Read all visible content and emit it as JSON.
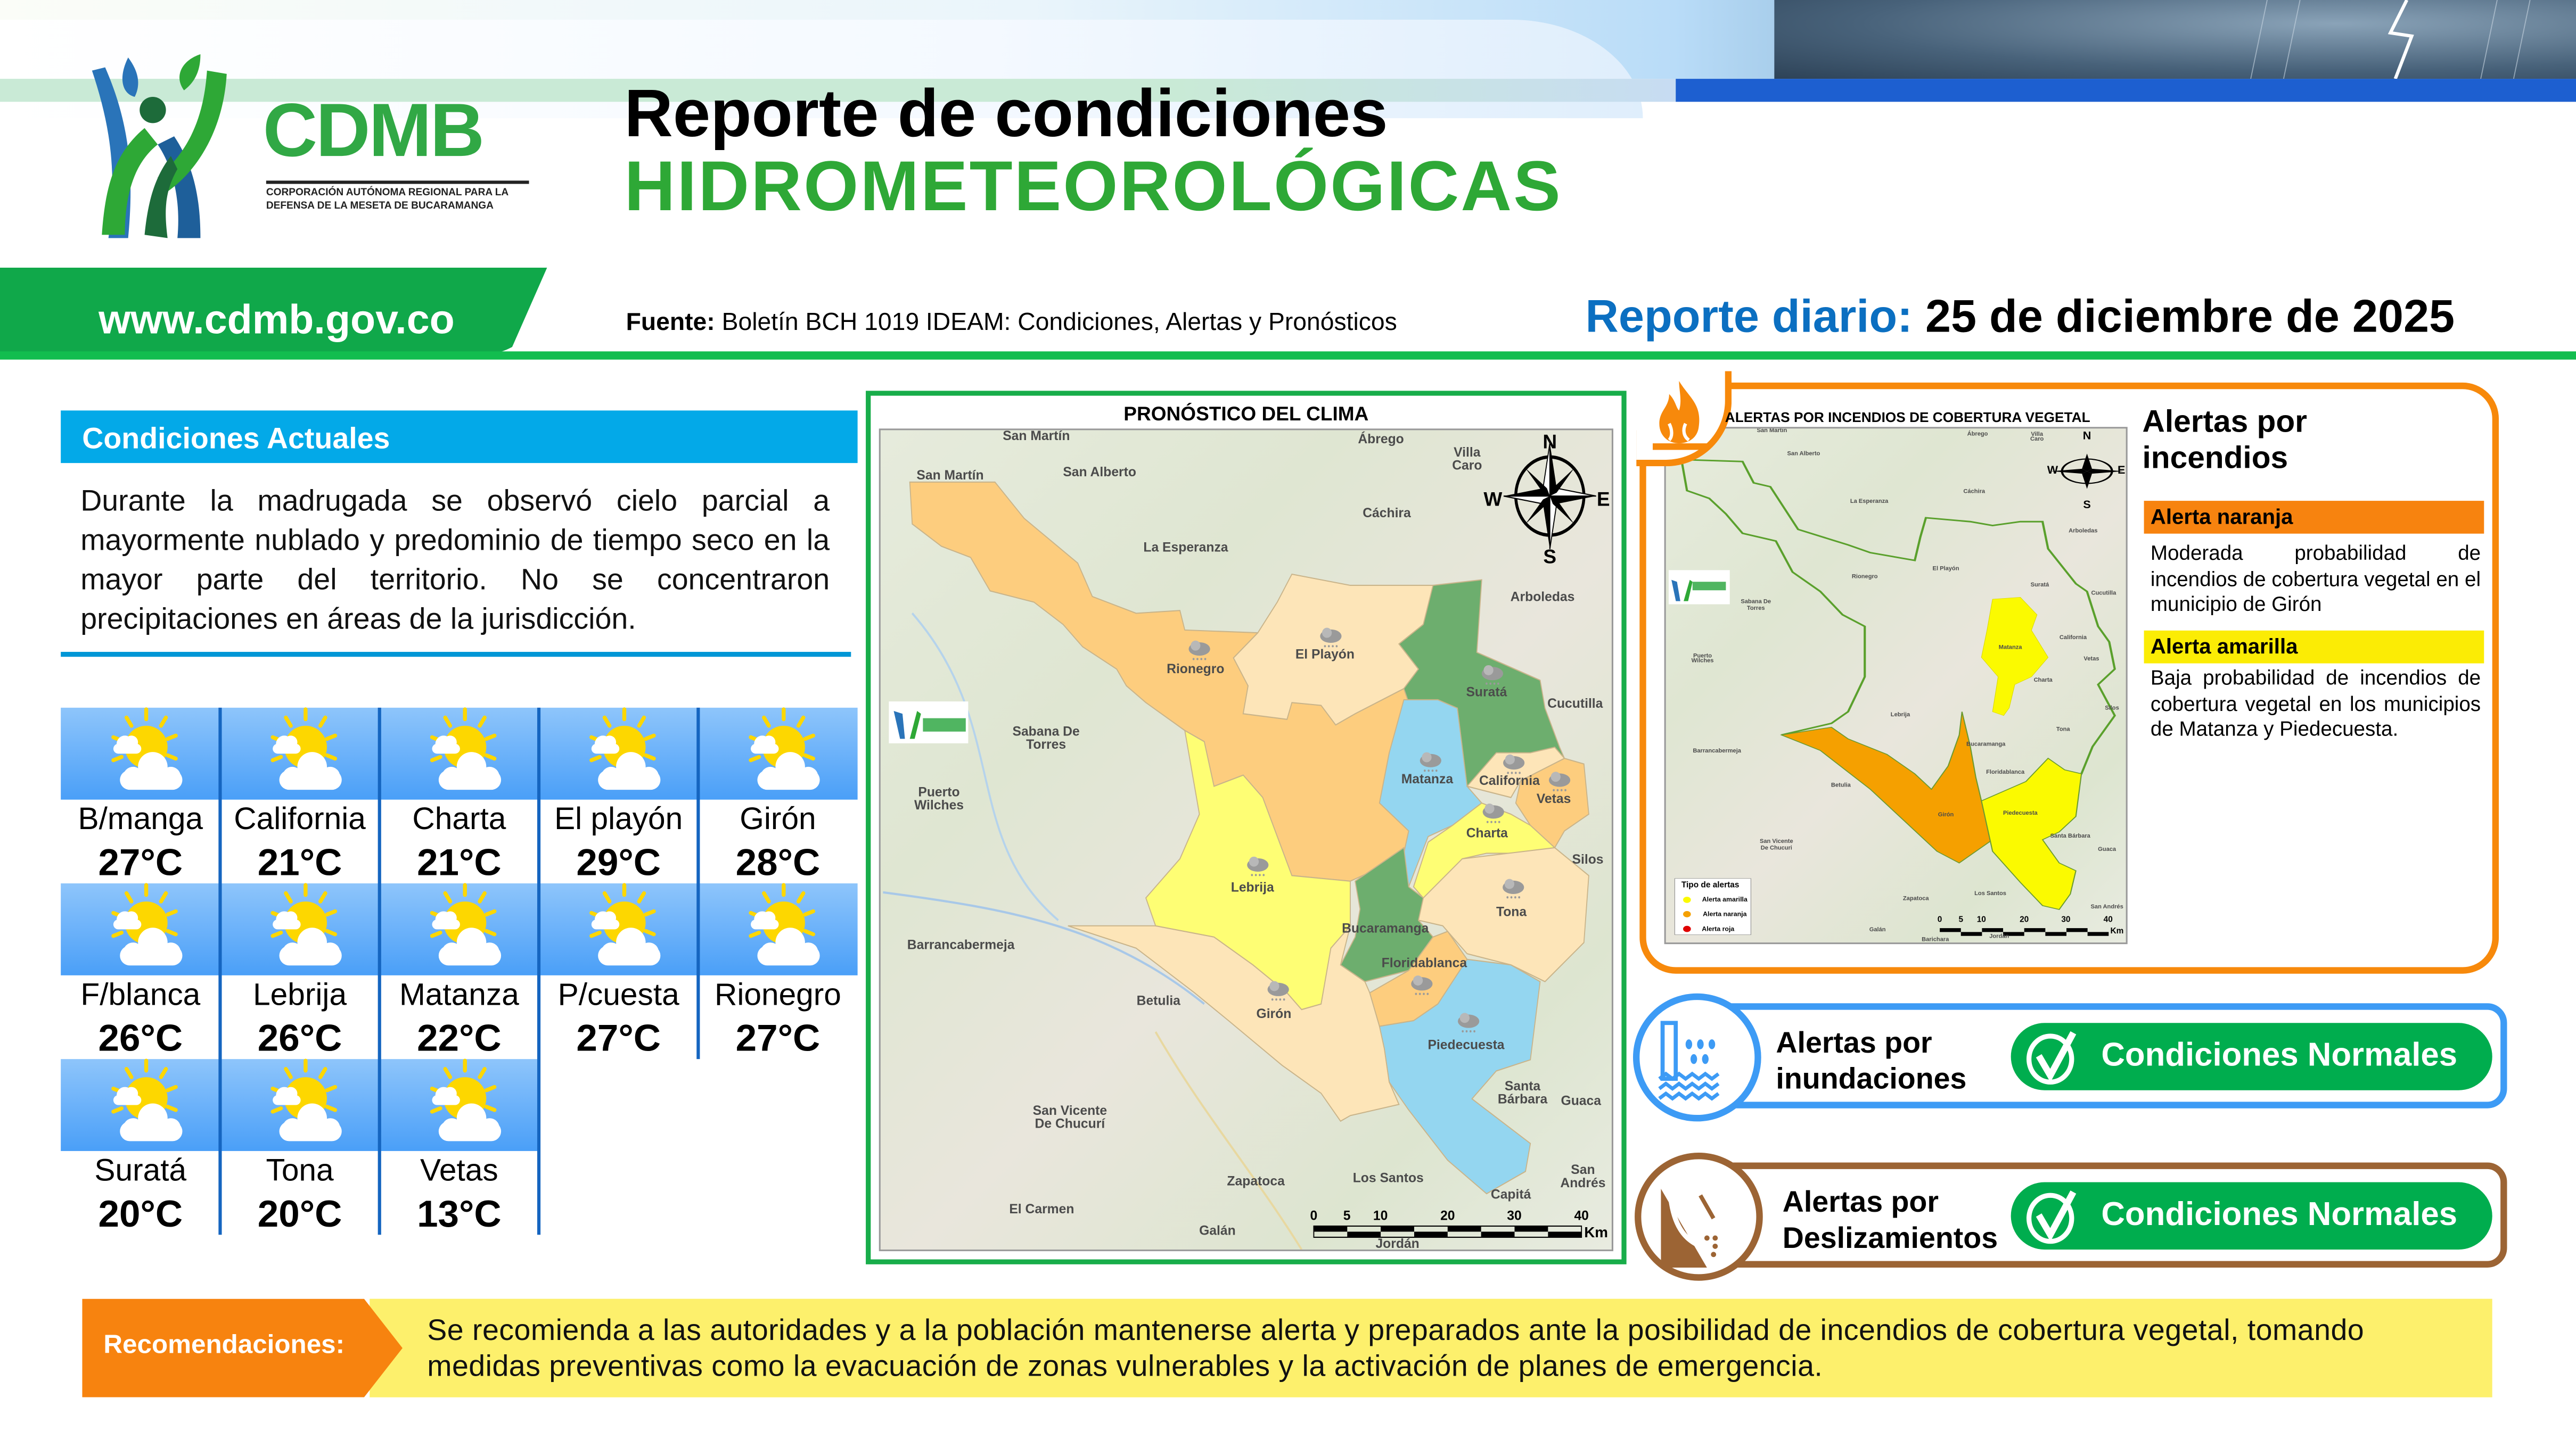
{
  "header": {
    "logo_text": "CDMB",
    "logo_subtitle": "CORPORACIÓN AUTÓNOMA REGIONAL PARA LA DEFENSA DE LA MESETA DE BUCARAMANGA",
    "title_line1": "Reporte de condiciones",
    "title_line2": "HIDROMETEOROLÓGICAS",
    "website": "www.cdmb.gov.co",
    "source_label": "Fuente:",
    "source_text": " Boletín BCH 1019 IDEAM: Condiciones, Alertas y Pronósticos",
    "report_label": "Reporte diario:",
    "report_date": " 25 de diciembre de 2025"
  },
  "current_conditions": {
    "title": "Condiciones Actuales",
    "text": "Durante la madrugada se observó cielo parcial a mayormente nublado y predominio de tiempo seco en la mayor parte del territorio. No se concentraron precipitaciones en áreas de la jurisdicción."
  },
  "weather": [
    {
      "name": "B/manga",
      "temp": "27°C",
      "icon": "partly-cloudy"
    },
    {
      "name": "California",
      "temp": "21°C",
      "icon": "partly-cloudy"
    },
    {
      "name": "Charta",
      "temp": "21°C",
      "icon": "partly-cloudy"
    },
    {
      "name": "El playón",
      "temp": "29°C",
      "icon": "partly-cloudy"
    },
    {
      "name": "Girón",
      "temp": "28°C",
      "icon": "partly-cloudy"
    },
    {
      "name": "F/blanca",
      "temp": "26°C",
      "icon": "partly-cloudy"
    },
    {
      "name": "Lebrija",
      "temp": "26°C",
      "icon": "partly-cloudy"
    },
    {
      "name": "Matanza",
      "temp": "22°C",
      "icon": "partly-cloudy"
    },
    {
      "name": "P/cuesta",
      "temp": "27°C",
      "icon": "partly-cloudy"
    },
    {
      "name": "Rionegro",
      "temp": "27°C",
      "icon": "partly-cloudy"
    },
    {
      "name": "Suratá",
      "temp": "20°C",
      "icon": "partly-cloudy"
    },
    {
      "name": "Tona",
      "temp": "20°C",
      "icon": "partly-cloudy"
    },
    {
      "name": "Vetas",
      "temp": "13°C",
      "icon": "partly-cloudy"
    }
  ],
  "weather_map": {
    "title": "PRONÓSTICO DEL CLIMA",
    "labels": [
      "San Martín",
      "San Martín",
      "San Alberto",
      "Ábrego",
      "Villa\nCaro",
      "Cáchira",
      "La Esperanza",
      "Arboledas",
      "Rionegro",
      "El Playón",
      "Suratá",
      "Cucutilla",
      "Sabana De\nTorres",
      "Puerto\nWilches",
      "Matanza",
      "California",
      "Vetas",
      "Charta",
      "Silos",
      "Lebrija",
      "Tona",
      "Bucaramanga",
      "Barrancabermeja",
      "Floridablanca",
      "Betulia",
      "Girón",
      "Piedecuesta",
      "Santa\nBárbara",
      "Guaca",
      "San Vicente\nDe Chucurí",
      "Zapatoca",
      "Los Santos",
      "El Carmen",
      "San\nAndrés",
      "Galán",
      "Jordán",
      "Capitá"
    ],
    "compass": [
      "N",
      "S",
      "W",
      "E"
    ],
    "scale_ticks": [
      "0",
      "5",
      "10",
      "20",
      "30",
      "40"
    ],
    "scale_unit": "Km",
    "colors": {
      "dry_orange": "#fdcd7e",
      "light": "#fde5b8",
      "green": "#6dae6e",
      "blue": "#94d6f0",
      "yellow": "#fefe74"
    }
  },
  "fire_alerts": {
    "map_title": "ALERTAS POR INCENDIOS DE COBERTURA VEGETAL",
    "heading": "Alertas por incendios",
    "orange_label": "Alerta naranja",
    "orange_text": "Moderada probabilidad de incendios de cobertura vegetal en el municipio de Girón",
    "yellow_label": "Alerta amarilla",
    "yellow_text": "Baja probabilidad de incendios de cobertura vegetal en los municipios de Matanza y Piedecuesta.",
    "legend_title": "Tipo de alertas",
    "legend": [
      "Alerta amarilla",
      "Alerta naranja",
      "Alerta roja"
    ],
    "map_labels": [
      "San Martín",
      "Ábrego",
      "Villa\nCaro",
      "San Alberto",
      "Cáchira",
      "La Esperanza",
      "Arboledas",
      "El Playón",
      "Rionegro",
      "Suratá",
      "Cucutilla",
      "Sabana De\nTorres",
      "California",
      "Matanza",
      "Vetas",
      "Puerto\nWilches",
      "Charta",
      "Silos",
      "Lebrija",
      "Tona",
      "Bucaramanga",
      "Barrancabermeja",
      "Floridablanca",
      "Betulia",
      "Girón",
      "Piedecuesta",
      "Santa Bárbara",
      "Guaca",
      "San Vicente\nDe Chucuri",
      "Los Santos",
      "Zapatoca",
      "San Andrés",
      "Galán",
      "Jordán",
      "Barichara"
    ],
    "colors": {
      "orange": "#f7890b",
      "orange_alert": "#f5a000",
      "yellow_alert": "#fbfa00",
      "yellow_bar": "#fbec05",
      "red": "#e00000"
    }
  },
  "flood_alert": {
    "title_line1": "Alertas por",
    "title_line2": "inundaciones",
    "status": "Condiciones Normales",
    "color": "#3d9bf5"
  },
  "landslide_alert": {
    "title_line1": "Alertas por",
    "title_line2": "Deslizamientos",
    "status": "Condiciones Normales",
    "color": "#9c6434"
  },
  "recommendations": {
    "label": "Recomendaciones:",
    "text": "Se recomienda a las autoridades y a la población mantenerse alerta y preparados ante la posibilidad de incendios de cobertura vegetal, tomando medidas preventivas como la evacuación de zonas vulnerables y la activación de planes de emergencia."
  }
}
